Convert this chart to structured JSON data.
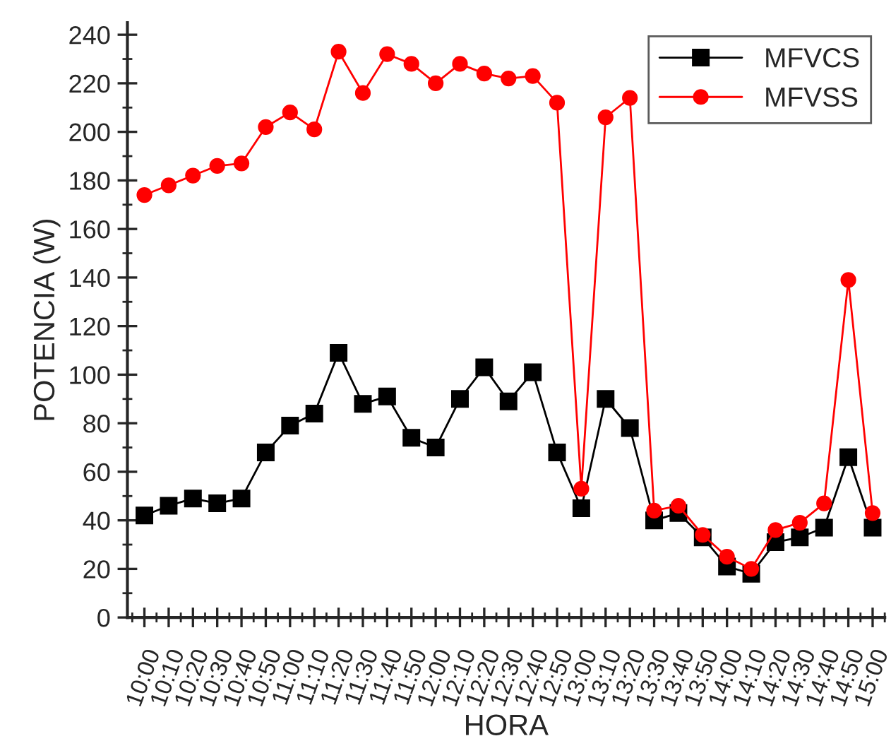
{
  "chart_data": {
    "type": "line",
    "xlabel": "HORA",
    "ylabel": "POTENCIA (W)",
    "categories": [
      "10:00",
      "10:10",
      "10:20",
      "10:30",
      "10:40",
      "10:50",
      "11:00",
      "11:10",
      "11:20",
      "11:30",
      "11:40",
      "11:50",
      "12:00",
      "12:10",
      "12:20",
      "12:30",
      "12:40",
      "12:50",
      "13:00",
      "13:10",
      "13:20",
      "13:30",
      "13:40",
      "13:50",
      "14:00",
      "14:10",
      "14:20",
      "14:30",
      "14:40",
      "14:50",
      "15:00"
    ],
    "series": [
      {
        "name": "MFVCS",
        "color": "#000000",
        "marker": "square",
        "values": [
          42,
          46,
          49,
          47,
          49,
          68,
          79,
          84,
          109,
          88,
          91,
          74,
          70,
          90,
          103,
          89,
          101,
          68,
          45,
          90,
          78,
          40,
          43,
          33,
          21,
          18,
          31,
          33,
          37,
          66,
          37
        ]
      },
      {
        "name": "MFVSS",
        "color": "#ff0000",
        "marker": "circle",
        "values": [
          174,
          178,
          182,
          186,
          187,
          202,
          208,
          201,
          233,
          216,
          232,
          228,
          220,
          228,
          224,
          222,
          223,
          212,
          53,
          206,
          214,
          44,
          46,
          34,
          25,
          20,
          36,
          39,
          47,
          139,
          43
        ]
      }
    ],
    "ylim": [
      0,
      245
    ],
    "yticks": [
      0,
      20,
      40,
      60,
      80,
      100,
      120,
      140,
      160,
      180,
      200,
      220,
      240
    ],
    "grid": false,
    "legend": "top right",
    "line_style": "solid"
  }
}
